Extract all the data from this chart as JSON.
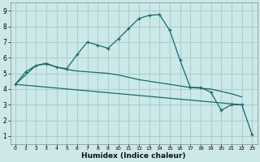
{
  "bg_color": "#cce8e8",
  "grid_color": "#aad0d0",
  "line_color": "#1a6b6b",
  "xlabel": "Humidex (Indice chaleur)",
  "xlim": [
    -0.5,
    23.5
  ],
  "ylim": [
    0.5,
    9.5
  ],
  "yticks": [
    1,
    2,
    3,
    4,
    5,
    6,
    7,
    8,
    9
  ],
  "xticks": [
    0,
    1,
    2,
    3,
    4,
    5,
    6,
    7,
    8,
    9,
    10,
    11,
    12,
    13,
    14,
    15,
    16,
    17,
    18,
    19,
    20,
    21,
    22,
    23
  ],
  "line1_x": [
    0,
    1,
    2,
    3,
    4,
    5,
    6,
    7,
    8,
    9,
    10,
    11,
    12,
    13,
    14,
    15,
    16,
    17,
    18,
    19,
    20,
    21,
    22,
    23
  ],
  "line1_y": [
    4.3,
    5.1,
    5.5,
    5.6,
    5.4,
    5.3,
    6.2,
    7.0,
    6.8,
    6.6,
    7.2,
    7.85,
    8.5,
    8.7,
    8.75,
    7.75,
    5.85,
    4.1,
    4.1,
    3.8,
    2.65,
    3.0,
    3.0,
    1.1
  ],
  "line2_x": [
    0,
    2,
    3,
    4,
    5,
    6,
    7,
    8,
    9,
    10,
    11,
    12,
    13,
    14,
    15,
    16,
    17,
    18,
    19,
    20,
    21,
    22
  ],
  "line2_y": [
    4.3,
    5.5,
    5.65,
    5.4,
    5.25,
    5.15,
    5.1,
    5.05,
    5.0,
    4.9,
    4.75,
    4.6,
    4.5,
    4.4,
    4.3,
    4.2,
    4.1,
    4.05,
    4.0,
    3.85,
    3.7,
    3.5
  ],
  "line3_x": [
    0,
    22
  ],
  "line3_y": [
    4.3,
    3.0
  ]
}
